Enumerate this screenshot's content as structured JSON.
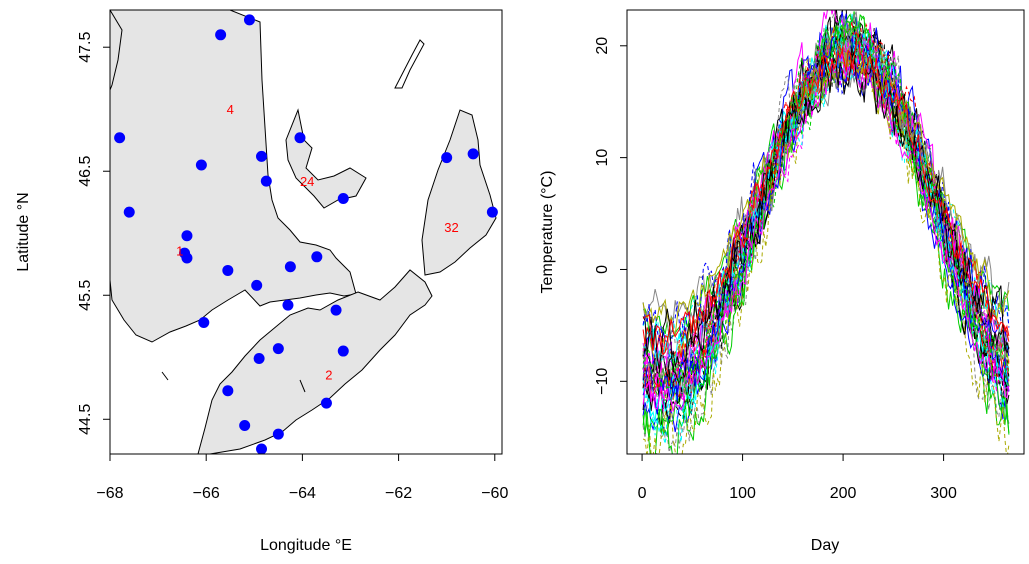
{
  "chart_data": [
    {
      "type": "scatter",
      "subtype": "map",
      "xlabel": "Longitude °E",
      "ylabel": "Latitude °N",
      "xlim": [
        -68,
        -59.85
      ],
      "ylim": [
        44.22,
        47.8
      ],
      "x_ticks": [
        -68,
        -66,
        -64,
        -62,
        -60
      ],
      "x_tick_labels": [
        "−68",
        "−66",
        "−64",
        "−62",
        "−60"
      ],
      "y_ticks": [
        44.5,
        45.5,
        46.5,
        47.5
      ],
      "y_tick_labels": [
        "44.5",
        "45.5",
        "46.5",
        "47.5"
      ],
      "grid": false,
      "colors": {
        "points": "#0000ff",
        "labels": "#ff0000",
        "land": "#e5e5e5",
        "coast": "#000000"
      },
      "points": [
        {
          "x": -65.7,
          "y": 47.6
        },
        {
          "x": -65.1,
          "y": 47.72
        },
        {
          "x": -67.8,
          "y": 46.77
        },
        {
          "x": -66.1,
          "y": 46.55
        },
        {
          "x": -64.85,
          "y": 46.62
        },
        {
          "x": -64.75,
          "y": 46.42
        },
        {
          "x": -64.05,
          "y": 46.77
        },
        {
          "x": -63.15,
          "y": 46.28
        },
        {
          "x": -61.0,
          "y": 46.61
        },
        {
          "x": -60.45,
          "y": 46.64
        },
        {
          "x": -60.05,
          "y": 46.17
        },
        {
          "x": -67.6,
          "y": 46.17
        },
        {
          "x": -66.4,
          "y": 45.98
        },
        {
          "x": -66.45,
          "y": 45.84
        },
        {
          "x": -66.4,
          "y": 45.8
        },
        {
          "x": -65.55,
          "y": 45.7
        },
        {
          "x": -64.25,
          "y": 45.73
        },
        {
          "x": -63.7,
          "y": 45.81
        },
        {
          "x": -64.95,
          "y": 45.58
        },
        {
          "x": -64.3,
          "y": 45.42
        },
        {
          "x": -63.3,
          "y": 45.38
        },
        {
          "x": -66.05,
          "y": 45.28
        },
        {
          "x": -64.5,
          "y": 45.07
        },
        {
          "x": -64.9,
          "y": 44.99
        },
        {
          "x": -63.15,
          "y": 45.05
        },
        {
          "x": -65.55,
          "y": 44.73
        },
        {
          "x": -63.5,
          "y": 44.63
        },
        {
          "x": -65.2,
          "y": 44.45
        },
        {
          "x": -64.5,
          "y": 44.38
        },
        {
          "x": -64.85,
          "y": 44.26
        }
      ],
      "annotations": [
        {
          "text": "4",
          "x": -65.5,
          "y": 47.0
        },
        {
          "text": "24",
          "x": -63.9,
          "y": 46.42
        },
        {
          "text": "32",
          "x": -60.9,
          "y": 46.05
        },
        {
          "text": "1",
          "x": -66.55,
          "y": 45.86
        },
        {
          "text": "2",
          "x": -63.45,
          "y": 44.86
        }
      ]
    },
    {
      "type": "line",
      "xlabel": "Day",
      "ylabel": "Temperature (°C)",
      "xlim": [
        -15,
        380
      ],
      "ylim": [
        -16.5,
        23.2
      ],
      "x_ticks": [
        0,
        100,
        200,
        300
      ],
      "x_tick_labels": [
        "0",
        "100",
        "200",
        "300"
      ],
      "y_ticks": [
        -10,
        0,
        10,
        20
      ],
      "y_tick_labels": [
        "−10",
        "0",
        "10",
        "20"
      ],
      "grid": false,
      "n_series": 35,
      "curve_model": {
        "peak_day": 205,
        "mean_summer_peak": 18.5,
        "mean_winter_low": -8,
        "summer_peak_range": [
          17.5,
          21.5
        ],
        "winter_low_range": [
          -15.5,
          -4
        ],
        "day_range": [
          1,
          365
        ]
      },
      "series_colors": [
        "#000000",
        "#ff0000",
        "#00cd00",
        "#0000ff",
        "#00ffff",
        "#ff00ff",
        "#aaaa00",
        "#888888"
      ]
    }
  ]
}
